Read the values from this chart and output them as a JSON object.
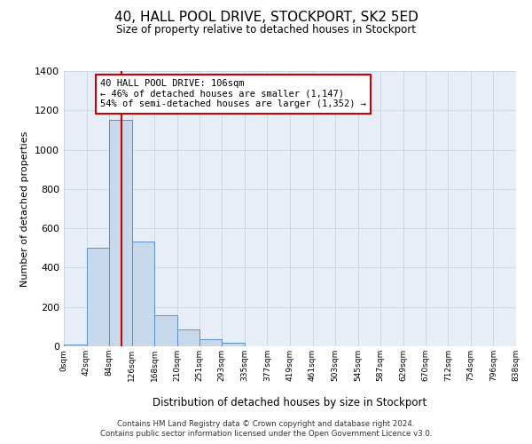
{
  "title": "40, HALL POOL DRIVE, STOCKPORT, SK2 5ED",
  "subtitle": "Size of property relative to detached houses in Stockport",
  "xlabel": "Distribution of detached houses by size in Stockport",
  "ylabel": "Number of detached properties",
  "bar_color": "#c9d9ec",
  "bar_edge_color": "#5b8fc9",
  "grid_color": "#c8d4e4",
  "background_color": "#e8eef8",
  "bin_edges": [
    0,
    42,
    84,
    126,
    168,
    210,
    251,
    293,
    335,
    377,
    419,
    461,
    503,
    545,
    587,
    629,
    670,
    712,
    754,
    796,
    838
  ],
  "bin_labels": [
    "0sqm",
    "42sqm",
    "84sqm",
    "126sqm",
    "168sqm",
    "210sqm",
    "251sqm",
    "293sqm",
    "335sqm",
    "377sqm",
    "419sqm",
    "461sqm",
    "503sqm",
    "545sqm",
    "587sqm",
    "629sqm",
    "670sqm",
    "712sqm",
    "754sqm",
    "796sqm",
    "838sqm"
  ],
  "bar_heights": [
    10,
    500,
    1150,
    535,
    160,
    85,
    35,
    20,
    0,
    0,
    0,
    0,
    0,
    0,
    0,
    0,
    0,
    0,
    0,
    0
  ],
  "red_line_x": 106,
  "annotation_line1": "40 HALL POOL DRIVE: 106sqm",
  "annotation_line2": "← 46% of detached houses are smaller (1,147)",
  "annotation_line3": "54% of semi-detached houses are larger (1,352) →",
  "annotation_box_color": "#ffffff",
  "annotation_box_edge_color": "#cc0000",
  "footnote1": "Contains HM Land Registry data © Crown copyright and database right 2024.",
  "footnote2": "Contains public sector information licensed under the Open Government Licence v3.0.",
  "ylim": [
    0,
    1400
  ],
  "yticks": [
    0,
    200,
    400,
    600,
    800,
    1000,
    1200,
    1400
  ]
}
